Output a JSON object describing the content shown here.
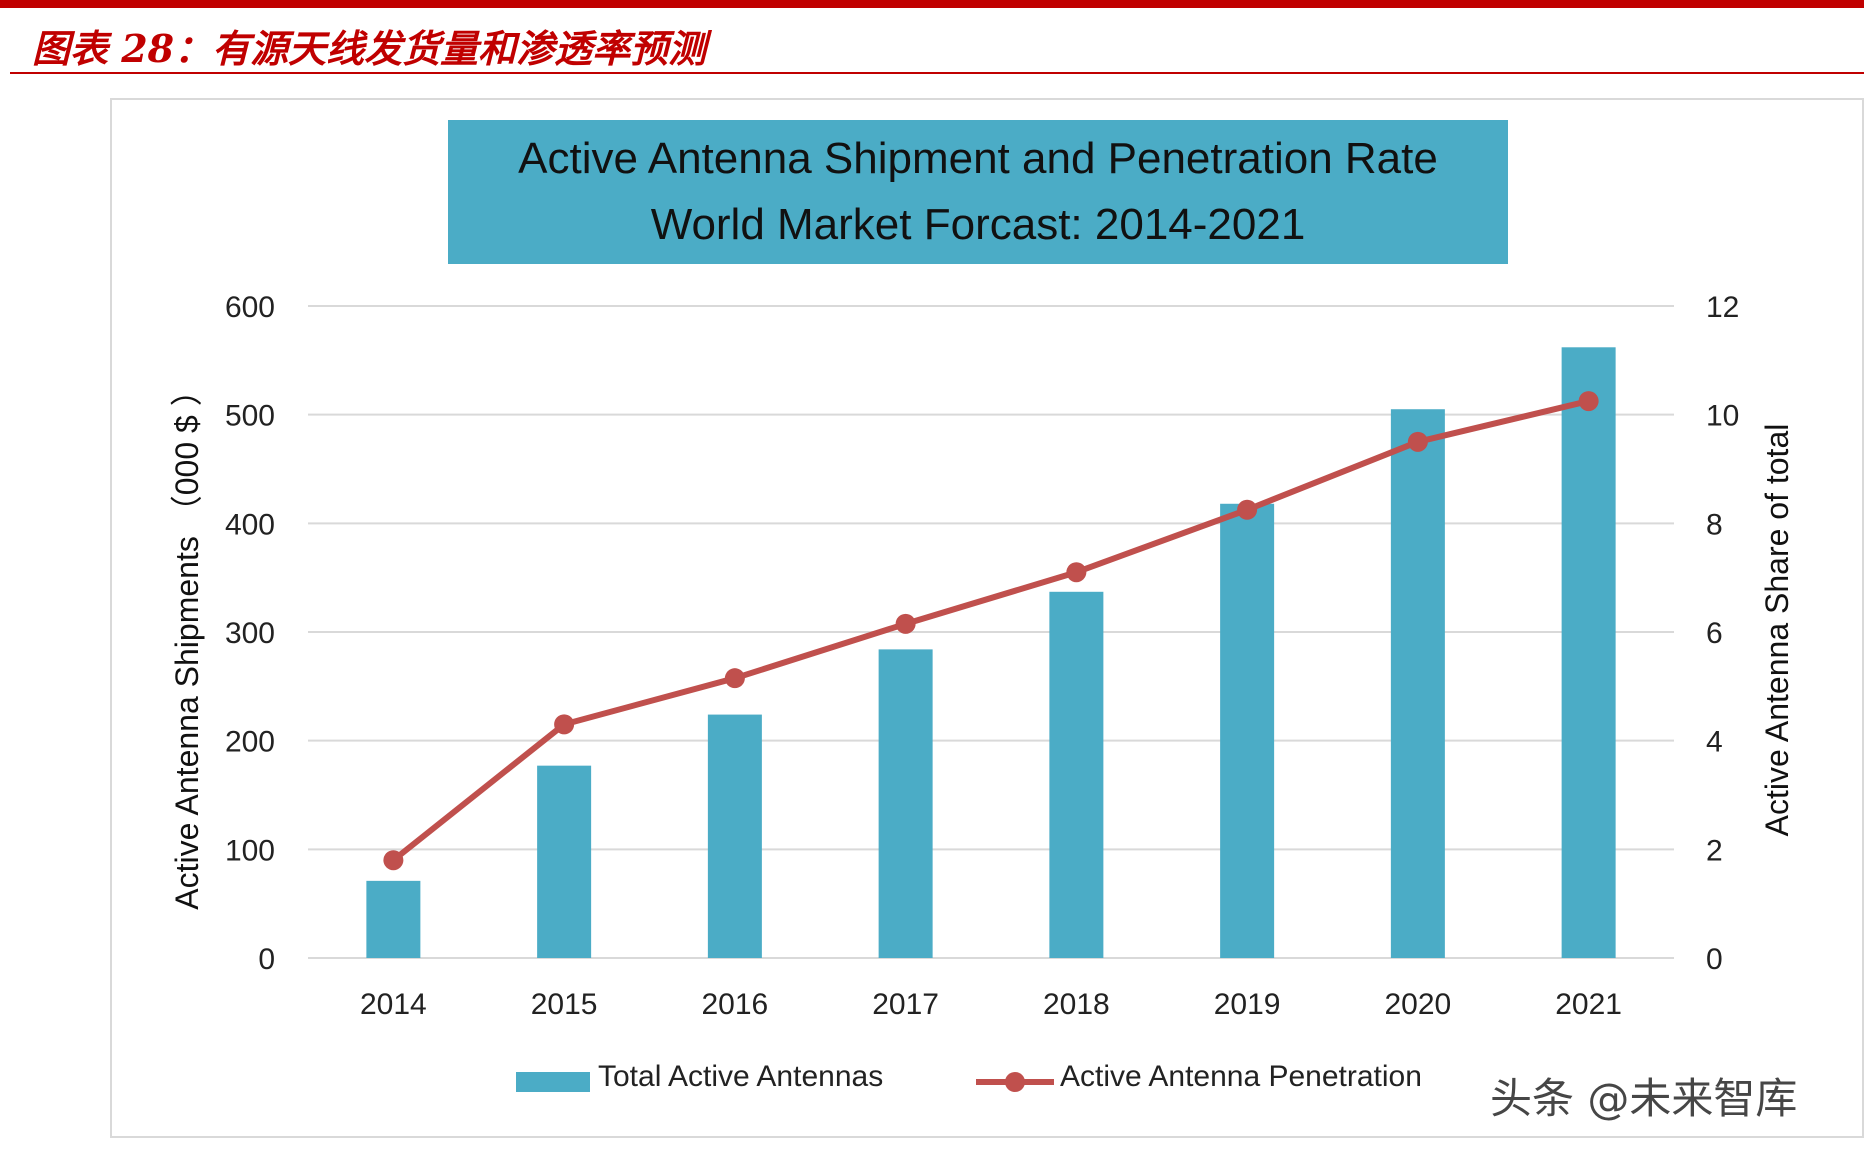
{
  "figure": {
    "caption": "图表 28：有源天线发货量和渗透率预测",
    "watermark": "头条 @未来智库"
  },
  "chart_data": {
    "type": "bar",
    "title_line1": "Active Antenna Shipment and Penetration Rate",
    "title_line2": "World Market Forcast: 2014-2021",
    "categories": [
      "2014",
      "2015",
      "2016",
      "2017",
      "2018",
      "2019",
      "2020",
      "2021"
    ],
    "series": [
      {
        "name": "Total Active Antennas",
        "kind": "bar",
        "axis": "left",
        "color": "#4bacc6",
        "values": [
          71,
          177,
          224,
          284,
          337,
          418,
          505,
          562
        ]
      },
      {
        "name": "Active Antenna Penetration",
        "kind": "line",
        "axis": "right",
        "color": "#c0504d",
        "values": [
          1.8,
          4.3,
          5.15,
          6.15,
          7.1,
          8.25,
          9.5,
          10.25
        ]
      }
    ],
    "ylabel": "Active Antenna Shipments （000 $ ）",
    "y2label": "Active Antenna Share of total",
    "ylim": [
      0,
      600
    ],
    "y2lim": [
      0,
      12
    ],
    "yticks": [
      "0",
      "100",
      "200",
      "300",
      "400",
      "500",
      "600"
    ],
    "y2ticks": [
      "0",
      "2",
      "4",
      "6",
      "8",
      "10",
      "12"
    ],
    "grid": true,
    "legend_position": "bottom"
  }
}
